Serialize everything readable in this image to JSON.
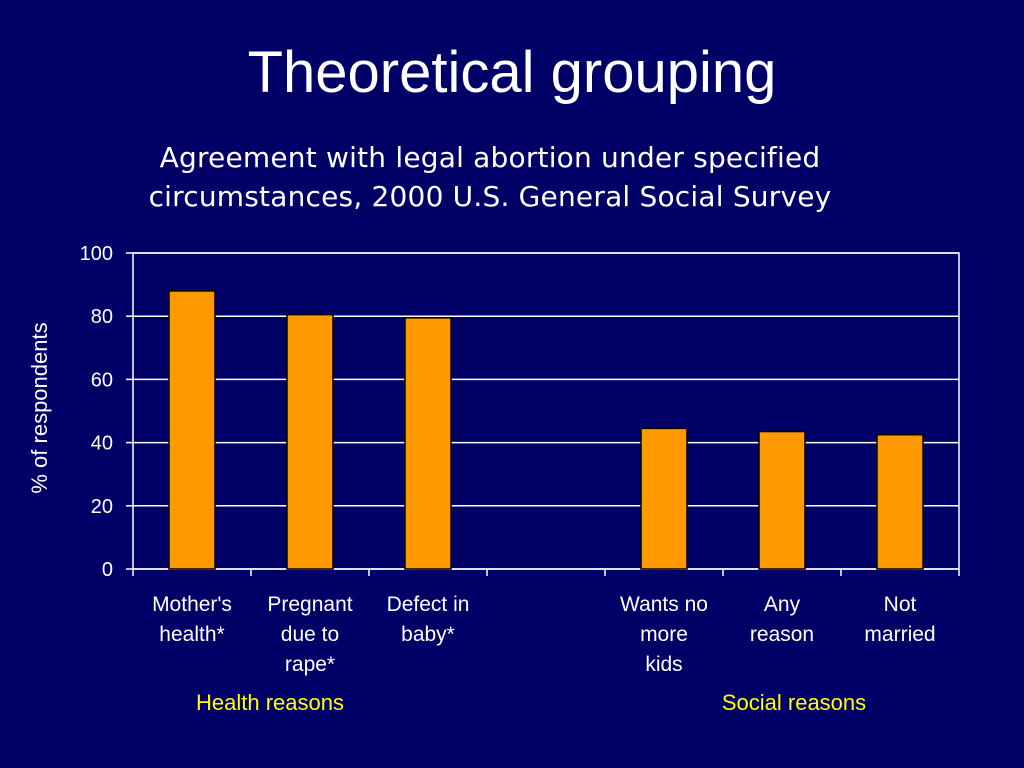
{
  "slide": {
    "title": "Theoretical grouping"
  },
  "chart_data": {
    "type": "bar",
    "title_lines": [
      "Agreement with legal abortion under specified",
      "circumstances, 2000 U.S. General Social Survey"
    ],
    "ylabel": "% of respondents",
    "ylim": [
      0,
      100
    ],
    "yticks": [
      0,
      20,
      40,
      60,
      80,
      100
    ],
    "grid": true,
    "categories": [
      [
        "Mother's",
        "health*"
      ],
      [
        "Pregnant",
        "due to",
        "rape*"
      ],
      [
        "Defect in",
        "baby*"
      ],
      [],
      [
        "Wants no",
        "more",
        "kids"
      ],
      [
        "Any",
        "reason"
      ],
      [
        "Not",
        "married"
      ]
    ],
    "values": [
      88,
      80.5,
      79.5,
      null,
      44.5,
      43.5,
      42.5
    ],
    "groups": [
      {
        "label": "Health reasons"
      },
      {
        "label": "Social reasons"
      }
    ],
    "colors": {
      "background": "#000066",
      "bar_fill": "#FF9900",
      "bar_stroke": "#000000",
      "text": "#FFFFFF",
      "group_text": "#FFFF00",
      "grid": "#FFFFFF"
    }
  }
}
